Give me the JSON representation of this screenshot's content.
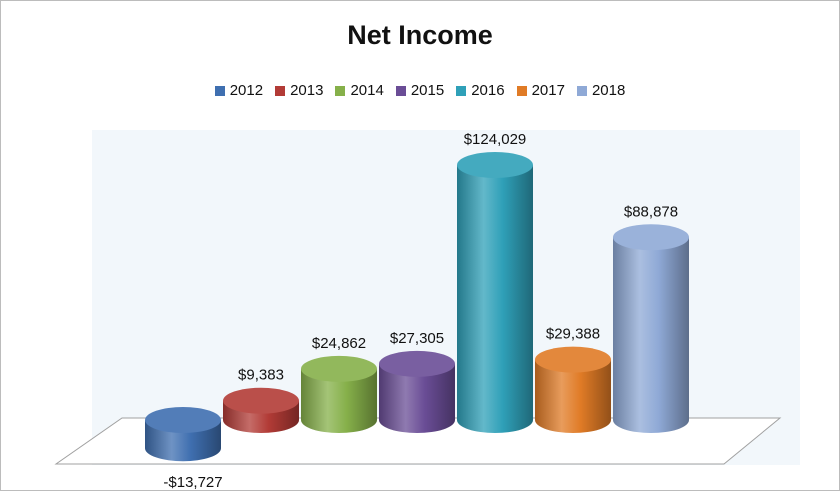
{
  "chart_data": {
    "type": "bar",
    "title": "Net Income",
    "categories": [
      "2012",
      "2013",
      "2014",
      "2015",
      "2016",
      "2017",
      "2018"
    ],
    "values": [
      -13727,
      9383,
      24862,
      27305,
      124029,
      29388,
      88878
    ],
    "data_labels": [
      "-$13,727",
      "$9,383",
      "$24,862",
      "$27,305",
      "$124,029",
      "$29,388",
      "$88,878"
    ],
    "legend": [
      "2012",
      "2013",
      "2014",
      "2015",
      "2016",
      "2017",
      "2018"
    ],
    "colors": [
      "#3f6fb0",
      "#b23b36",
      "#86b04a",
      "#6a4d96",
      "#2fa0b8",
      "#e07b26",
      "#8fa9d6"
    ],
    "legend_position": "top",
    "style": "3d-cylinder",
    "grid": false
  }
}
